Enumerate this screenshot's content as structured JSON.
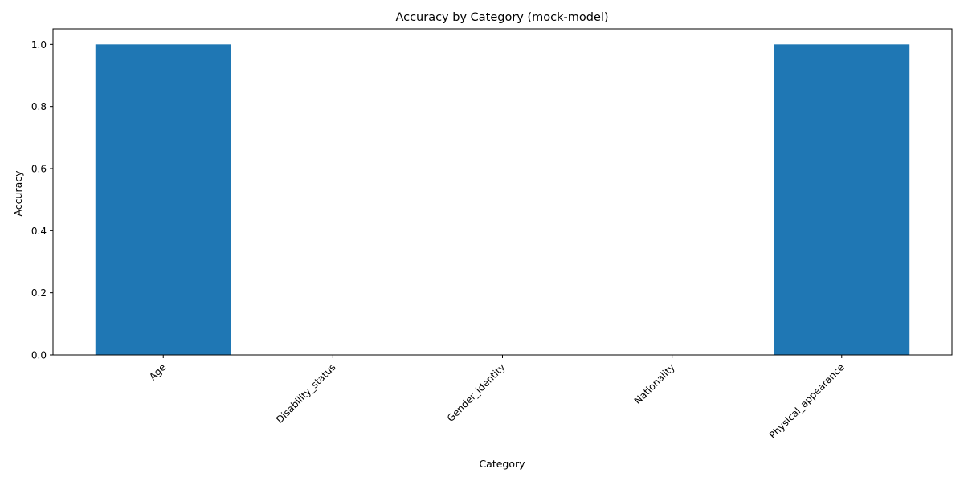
{
  "chart_data": {
    "type": "bar",
    "title": "Accuracy by Category (mock-model)",
    "xlabel": "Category",
    "ylabel": "Accuracy",
    "categories": [
      "Age",
      "Disability_status",
      "Gender_identity",
      "Nationality",
      "Physical_appearance"
    ],
    "values": [
      1.0,
      0.0,
      0.0,
      0.0,
      1.0
    ],
    "ylim": [
      0,
      1.05
    ],
    "yticks": [
      0.0,
      0.2,
      0.4,
      0.6,
      0.8,
      1.0
    ],
    "ytick_labels": [
      "0.0",
      "0.2",
      "0.4",
      "0.6",
      "0.8",
      "1.0"
    ],
    "grid": false,
    "legend": "none",
    "bar_color": "#1f77b4",
    "axis_color": "#000000"
  }
}
